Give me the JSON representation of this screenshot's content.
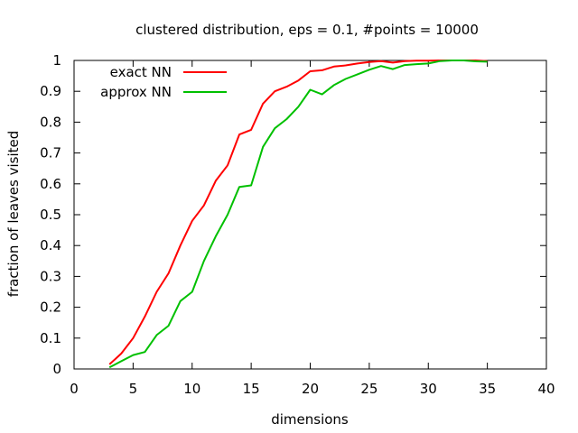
{
  "chart_data": {
    "type": "line",
    "title": "clustered distribution, eps = 0.1, #points = 10000",
    "xlabel": "dimensions",
    "ylabel": "fraction of leaves visited",
    "xlim": [
      0,
      40
    ],
    "ylim": [
      0,
      1
    ],
    "xticks": [
      "0",
      "5",
      "10",
      "15",
      "20",
      "25",
      "30",
      "35",
      "40"
    ],
    "yticks": [
      "0",
      "0.1",
      "0.2",
      "0.3",
      "0.4",
      "0.5",
      "0.6",
      "0.7",
      "0.8",
      "0.9",
      "1"
    ],
    "grid": false,
    "legend_position": "top-left",
    "series": [
      {
        "name": "exact NN",
        "color": "#ff0000",
        "x": [
          3,
          4,
          5,
          6,
          7,
          8,
          9,
          10,
          11,
          12,
          13,
          14,
          15,
          16,
          17,
          18,
          19,
          20,
          21,
          22,
          23,
          24,
          25,
          26,
          27,
          28,
          29,
          30,
          31,
          32,
          33,
          34,
          35
        ],
        "y": [
          0.015,
          0.05,
          0.1,
          0.17,
          0.25,
          0.31,
          0.4,
          0.48,
          0.53,
          0.61,
          0.66,
          0.76,
          0.775,
          0.86,
          0.9,
          0.915,
          0.935,
          0.965,
          0.968,
          0.98,
          0.984,
          0.99,
          0.995,
          0.998,
          0.993,
          0.998,
          0.999,
          0.999,
          1.0,
          1.0,
          1.0,
          1.0,
          0.998
        ]
      },
      {
        "name": "approx NN",
        "color": "#00c000",
        "x": [
          3,
          4,
          5,
          6,
          7,
          8,
          9,
          10,
          11,
          12,
          13,
          14,
          15,
          16,
          17,
          18,
          19,
          20,
          21,
          22,
          23,
          24,
          25,
          26,
          27,
          28,
          29,
          30,
          31,
          32,
          33,
          34,
          35
        ],
        "y": [
          0.005,
          0.025,
          0.045,
          0.055,
          0.11,
          0.14,
          0.22,
          0.25,
          0.35,
          0.43,
          0.5,
          0.59,
          0.595,
          0.72,
          0.78,
          0.81,
          0.85,
          0.905,
          0.89,
          0.92,
          0.94,
          0.955,
          0.97,
          0.982,
          0.972,
          0.985,
          0.988,
          0.99,
          0.998,
          1.0,
          1.0,
          0.997,
          0.996
        ]
      }
    ]
  }
}
